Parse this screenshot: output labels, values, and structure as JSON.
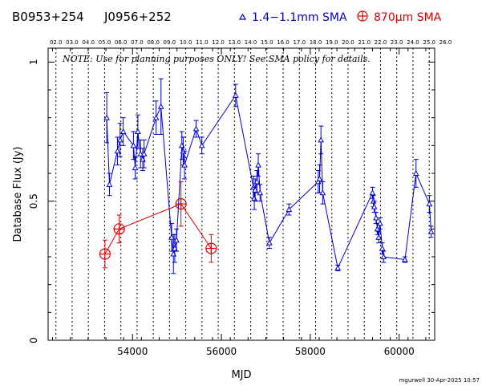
{
  "header": {
    "source1": "B0953+254",
    "source2": "J0956+252",
    "legend_blue": "1.4−1.1mm SMA",
    "legend_red": "870μm SMA"
  },
  "note": "NOTE: Use for planning purposes ONLY! See SMA policy for details.",
  "footer": "mgurwell 30-Apr-2025 10:57",
  "colors": {
    "blue": "#0000cc",
    "red": "#dd0000",
    "axis": "#000000"
  },
  "chart_data": {
    "type": "scatter",
    "xlabel": "MJD",
    "ylabel": "Database Flux (Jy)",
    "xlim": [
      52100,
      60800
    ],
    "ylim": [
      0,
      1.05
    ],
    "x_ticks": [
      54000,
      56000,
      58000,
      60000
    ],
    "y_ticks": [
      0,
      0.5,
      1
    ],
    "y_tick_labels": [
      "0",
      "0.5",
      "1"
    ],
    "top_axis_ticks": [
      {
        "label": "02.0",
        "mjd": 52276
      },
      {
        "label": "03.0",
        "mjd": 52641
      },
      {
        "label": "04.0",
        "mjd": 53006
      },
      {
        "label": "05.0",
        "mjd": 53371
      },
      {
        "label": "06.0",
        "mjd": 53737
      },
      {
        "label": "07.0",
        "mjd": 54102
      },
      {
        "label": "08.0",
        "mjd": 54467
      },
      {
        "label": "09.0",
        "mjd": 54832
      },
      {
        "label": "10.0",
        "mjd": 55198
      },
      {
        "label": "11.0",
        "mjd": 55563
      },
      {
        "label": "12.0",
        "mjd": 55928
      },
      {
        "label": "13.0",
        "mjd": 56293
      },
      {
        "label": "14.0",
        "mjd": 56659
      },
      {
        "label": "15.0",
        "mjd": 57024
      },
      {
        "label": "16.0",
        "mjd": 57389
      },
      {
        "label": "17.0",
        "mjd": 57754
      },
      {
        "label": "18.0",
        "mjd": 58120
      },
      {
        "label": "19.0",
        "mjd": 58485
      },
      {
        "label": "20.0",
        "mjd": 58850
      },
      {
        "label": "21.0",
        "mjd": 59216
      },
      {
        "label": "22.0",
        "mjd": 59581
      },
      {
        "label": "23.0",
        "mjd": 59946
      },
      {
        "label": "24.0",
        "mjd": 60311
      },
      {
        "label": "25.0",
        "mjd": 60677
      },
      {
        "label": "26.0",
        "mjd": 61042
      }
    ],
    "series": [
      {
        "name": "1.4−1.1mm SMA",
        "color": "#0000cc",
        "marker": "triangle",
        "points": [
          {
            "x": 53420,
            "y": 0.8,
            "err": 0.09
          },
          {
            "x": 53480,
            "y": 0.56,
            "err": 0.04
          },
          {
            "x": 53660,
            "y": 0.68,
            "err": 0.05
          },
          {
            "x": 53720,
            "y": 0.72,
            "err": 0.06
          },
          {
            "x": 53790,
            "y": 0.75,
            "err": 0.05
          },
          {
            "x": 54020,
            "y": 0.7,
            "err": 0.05
          },
          {
            "x": 54060,
            "y": 0.62,
            "err": 0.04
          },
          {
            "x": 54120,
            "y": 0.75,
            "err": 0.06
          },
          {
            "x": 54180,
            "y": 0.67,
            "err": 0.05
          },
          {
            "x": 54230,
            "y": 0.65,
            "err": 0.04
          },
          {
            "x": 54260,
            "y": 0.67,
            "err": 0.05
          },
          {
            "x": 54530,
            "y": 0.8,
            "err": 0.06
          },
          {
            "x": 54640,
            "y": 0.84,
            "err": 0.1
          },
          {
            "x": 54880,
            "y": 0.37,
            "err": 0.05
          },
          {
            "x": 54920,
            "y": 0.31,
            "err": 0.07
          },
          {
            "x": 54950,
            "y": 0.33,
            "err": 0.05
          },
          {
            "x": 54990,
            "y": 0.36,
            "err": 0.04
          },
          {
            "x": 55110,
            "y": 0.7,
            "err": 0.05
          },
          {
            "x": 55140,
            "y": 0.68,
            "err": 0.05
          },
          {
            "x": 55170,
            "y": 0.63,
            "err": 0.05
          },
          {
            "x": 55430,
            "y": 0.76,
            "err": 0.03
          },
          {
            "x": 55560,
            "y": 0.7,
            "err": 0.03
          },
          {
            "x": 56320,
            "y": 0.88,
            "err": 0.04
          },
          {
            "x": 56720,
            "y": 0.55,
            "err": 0.04
          },
          {
            "x": 56740,
            "y": 0.51,
            "err": 0.04
          },
          {
            "x": 56760,
            "y": 0.54,
            "err": 0.04
          },
          {
            "x": 56800,
            "y": 0.57,
            "err": 0.04
          },
          {
            "x": 56830,
            "y": 0.63,
            "err": 0.04
          },
          {
            "x": 56870,
            "y": 0.53,
            "err": 0.03
          },
          {
            "x": 57080,
            "y": 0.35,
            "err": 0.02
          },
          {
            "x": 57520,
            "y": 0.47,
            "err": 0.02
          },
          {
            "x": 58180,
            "y": 0.57,
            "err": 0.04
          },
          {
            "x": 58210,
            "y": 0.58,
            "err": 0.05
          },
          {
            "x": 58240,
            "y": 0.72,
            "err": 0.05
          },
          {
            "x": 58280,
            "y": 0.53,
            "err": 0.04
          },
          {
            "x": 58620,
            "y": 0.26,
            "err": 0.01
          },
          {
            "x": 59400,
            "y": 0.53,
            "err": 0.02
          },
          {
            "x": 59420,
            "y": 0.5,
            "err": 0.02
          },
          {
            "x": 59440,
            "y": 0.48,
            "err": 0.02
          },
          {
            "x": 59480,
            "y": 0.44,
            "err": 0.02
          },
          {
            "x": 59510,
            "y": 0.4,
            "err": 0.02
          },
          {
            "x": 59540,
            "y": 0.37,
            "err": 0.02
          },
          {
            "x": 59570,
            "y": 0.42,
            "err": 0.02
          },
          {
            "x": 59620,
            "y": 0.33,
            "err": 0.02
          },
          {
            "x": 59650,
            "y": 0.3,
            "err": 0.02
          },
          {
            "x": 60130,
            "y": 0.29,
            "err": 0.01
          },
          {
            "x": 60380,
            "y": 0.6,
            "err": 0.05
          },
          {
            "x": 60680,
            "y": 0.49,
            "err": 0.03
          },
          {
            "x": 60720,
            "y": 0.39,
            "err": 0.02
          }
        ]
      },
      {
        "name": "870μm SMA",
        "color": "#dd0000",
        "marker": "circle-plus",
        "points": [
          {
            "x": 53380,
            "y": 0.31,
            "err": 0.05
          },
          {
            "x": 53700,
            "y": 0.4,
            "err": 0.05
          },
          {
            "x": 55090,
            "y": 0.49,
            "err": 0.08
          },
          {
            "x": 55770,
            "y": 0.33,
            "err": 0.05
          }
        ]
      }
    ]
  }
}
